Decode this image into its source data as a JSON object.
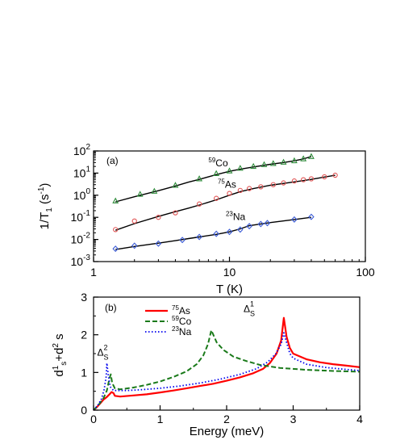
{
  "chart_data": [
    {
      "type": "scatter",
      "panel_label": "(a)",
      "xlabel": "T (K)",
      "ylabel": "1/T1 (s-1)",
      "ylabel_parts": {
        "main": "1/T",
        "sub": "1",
        "mid": " (s",
        "sup": "-1",
        "end": ")"
      },
      "xscale": "log",
      "yscale": "log",
      "xlim": [
        1,
        100
      ],
      "ylim": [
        0.001,
        100
      ],
      "x_ticks": [
        {
          "v": 1,
          "label": "1"
        },
        {
          "v": 10,
          "label": "10"
        },
        {
          "v": 100,
          "label": "100"
        }
      ],
      "y_ticks": [
        {
          "v": 0.001,
          "base": "10",
          "exp": "-3"
        },
        {
          "v": 0.01,
          "base": "10",
          "exp": "-2"
        },
        {
          "v": 0.1,
          "base": "10",
          "exp": "-1"
        },
        {
          "v": 1,
          "base": "10",
          "exp": "0"
        },
        {
          "v": 10,
          "base": "10",
          "exp": "1"
        },
        {
          "v": 100,
          "base": "10",
          "exp": "2"
        }
      ],
      "series": [
        {
          "name": "59Co",
          "label_sup": "59",
          "label_main": "Co",
          "label_at": [
            7.0,
            20
          ],
          "marker": "triangle",
          "color": "#2e8b3a",
          "points": [
            [
              1.45,
              0.55
            ],
            [
              2.2,
              1.1
            ],
            [
              2.8,
              1.5
            ],
            [
              4.0,
              2.8
            ],
            [
              6.0,
              5.5
            ],
            [
              8.0,
              9.5
            ],
            [
              10.0,
              12.5
            ],
            [
              12.0,
              16.5
            ],
            [
              15.0,
              20
            ],
            [
              18.0,
              24
            ],
            [
              21.0,
              27
            ],
            [
              25.0,
              31
            ],
            [
              30.0,
              36
            ],
            [
              35.0,
              44
            ],
            [
              40.0,
              56
            ]
          ],
          "fit": [
            [
              1.45,
              0.5
            ],
            [
              2.0,
              0.85
            ],
            [
              3.0,
              1.6
            ],
            [
              4.0,
              2.6
            ],
            [
              5.0,
              3.9
            ],
            [
              6.0,
              5.2
            ],
            [
              8.0,
              8.5
            ],
            [
              10.0,
              12
            ],
            [
              12.0,
              15
            ],
            [
              15.0,
              19
            ],
            [
              20.0,
              25
            ],
            [
              25.0,
              30
            ],
            [
              30.0,
              36
            ],
            [
              35.0,
              44
            ],
            [
              40.0,
              56
            ]
          ]
        },
        {
          "name": "75As",
          "label_sup": "75",
          "label_main": "As",
          "label_at": [
            8.2,
            2.2
          ],
          "marker": "circle",
          "color": "#e05252",
          "points": [
            [
              1.45,
              0.028
            ],
            [
              2.0,
              0.068
            ],
            [
              3.0,
              0.1
            ],
            [
              4.0,
              0.16
            ],
            [
              6.0,
              0.4
            ],
            [
              8.0,
              0.72
            ],
            [
              10.0,
              1.2
            ],
            [
              12.0,
              1.65
            ],
            [
              14.0,
              2.0
            ],
            [
              17.0,
              2.4
            ],
            [
              21.0,
              3.0
            ],
            [
              25.0,
              3.6
            ],
            [
              30.0,
              4.4
            ],
            [
              35.0,
              5.0
            ],
            [
              40.0,
              5.5
            ],
            [
              50.0,
              6.8
            ],
            [
              60.0,
              8.0
            ]
          ],
          "fit": [
            [
              1.45,
              0.026
            ],
            [
              2.0,
              0.052
            ],
            [
              3.0,
              0.11
            ],
            [
              4.0,
              0.18
            ],
            [
              5.0,
              0.26
            ],
            [
              6.0,
              0.36
            ],
            [
              8.0,
              0.62
            ],
            [
              10.0,
              1.0
            ],
            [
              12.0,
              1.45
            ],
            [
              15.0,
              2.0
            ],
            [
              20.0,
              2.8
            ],
            [
              30.0,
              4.0
            ],
            [
              40.0,
              5.2
            ],
            [
              50.0,
              6.6
            ],
            [
              60.0,
              8.0
            ]
          ]
        },
        {
          "name": "23Na",
          "label_sup": "23",
          "label_main": "Na",
          "label_at": [
            9.4,
            0.075
          ],
          "marker": "diamond",
          "color": "#3b5bd6",
          "points": [
            [
              1.45,
              0.0038
            ],
            [
              2.0,
              0.0052
            ],
            [
              3.0,
              0.0065
            ],
            [
              4.5,
              0.0095
            ],
            [
              6.0,
              0.013
            ],
            [
              8.0,
              0.018
            ],
            [
              10.0,
              0.022
            ],
            [
              12.0,
              0.028
            ],
            [
              14.0,
              0.04
            ],
            [
              17.0,
              0.05
            ],
            [
              19.0,
              0.055
            ],
            [
              30.0,
              0.08
            ],
            [
              40.0,
              0.105
            ]
          ],
          "fit": [
            [
              1.45,
              0.0035
            ],
            [
              2.0,
              0.0048
            ],
            [
              3.0,
              0.0068
            ],
            [
              4.0,
              0.0088
            ],
            [
              5.0,
              0.011
            ],
            [
              6.0,
              0.013
            ],
            [
              8.0,
              0.017
            ],
            [
              10.0,
              0.022
            ],
            [
              12.0,
              0.03
            ],
            [
              14.0,
              0.042
            ],
            [
              17.0,
              0.05
            ],
            [
              20.0,
              0.058
            ],
            [
              30.0,
              0.08
            ],
            [
              40.0,
              0.1
            ]
          ]
        }
      ]
    },
    {
      "type": "line",
      "panel_label": "(b)",
      "xlabel": "Energy  (meV)",
      "ylabel_parts": {
        "a": "d",
        "a_sup": "1",
        "a_sub": "s",
        "plus": "+d",
        "b_sup": "2",
        "b_end": " s"
      },
      "xlim": [
        0,
        4
      ],
      "ylim": [
        0,
        3
      ],
      "x_ticks": [
        {
          "v": 0,
          "label": "0"
        },
        {
          "v": 1,
          "label": "1"
        },
        {
          "v": 2,
          "label": "2"
        },
        {
          "v": 3,
          "label": "3"
        },
        {
          "v": 4,
          "label": "4"
        }
      ],
      "y_ticks": [
        {
          "v": 0,
          "label": "0"
        },
        {
          "v": 1,
          "label": "1"
        },
        {
          "v": 2,
          "label": "2"
        },
        {
          "v": 3,
          "label": "3"
        }
      ],
      "annotations": [
        {
          "main": "Δ",
          "sub": "S",
          "sup": "2",
          "at": [
            0.2,
            1.45
          ]
        },
        {
          "main": "Δ",
          "sub": "S",
          "sup": "1",
          "at": [
            2.4,
            2.6
          ]
        }
      ],
      "legend": "top-left",
      "series": [
        {
          "name": "75As",
          "sup": "75",
          "main": "As",
          "color": "#ff0000",
          "dash": "solid",
          "points": [
            [
              0,
              0
            ],
            [
              0.05,
              0.08
            ],
            [
              0.1,
              0.18
            ],
            [
              0.15,
              0.28
            ],
            [
              0.2,
              0.35
            ],
            [
              0.24,
              0.42
            ],
            [
              0.27,
              0.48
            ],
            [
              0.3,
              0.45
            ],
            [
              0.32,
              0.38
            ],
            [
              0.4,
              0.36
            ],
            [
              0.6,
              0.39
            ],
            [
              0.8,
              0.42
            ],
            [
              1.0,
              0.47
            ],
            [
              1.2,
              0.52
            ],
            [
              1.4,
              0.58
            ],
            [
              1.6,
              0.64
            ],
            [
              1.8,
              0.7
            ],
            [
              2.0,
              0.78
            ],
            [
              2.2,
              0.87
            ],
            [
              2.4,
              0.98
            ],
            [
              2.55,
              1.1
            ],
            [
              2.65,
              1.25
            ],
            [
              2.75,
              1.5
            ],
            [
              2.82,
              1.85
            ],
            [
              2.86,
              2.45
            ],
            [
              2.9,
              1.95
            ],
            [
              2.95,
              1.65
            ],
            [
              3.0,
              1.5
            ],
            [
              3.2,
              1.35
            ],
            [
              3.4,
              1.27
            ],
            [
              3.6,
              1.22
            ],
            [
              3.8,
              1.18
            ],
            [
              4.0,
              1.14
            ]
          ]
        },
        {
          "name": "59Co",
          "sup": "59",
          "main": "Co",
          "color": "#1a7a1a",
          "dash": "dashed",
          "points": [
            [
              0,
              0
            ],
            [
              0.08,
              0.15
            ],
            [
              0.15,
              0.32
            ],
            [
              0.2,
              0.52
            ],
            [
              0.24,
              0.85
            ],
            [
              0.26,
              0.95
            ],
            [
              0.28,
              0.72
            ],
            [
              0.32,
              0.58
            ],
            [
              0.4,
              0.55
            ],
            [
              0.6,
              0.6
            ],
            [
              0.8,
              0.67
            ],
            [
              1.0,
              0.76
            ],
            [
              1.2,
              0.88
            ],
            [
              1.4,
              1.03
            ],
            [
              1.55,
              1.22
            ],
            [
              1.65,
              1.45
            ],
            [
              1.72,
              1.75
            ],
            [
              1.77,
              2.12
            ],
            [
              1.8,
              2.0
            ],
            [
              1.85,
              1.8
            ],
            [
              1.95,
              1.6
            ],
            [
              2.1,
              1.42
            ],
            [
              2.3,
              1.3
            ],
            [
              2.5,
              1.2
            ],
            [
              2.8,
              1.12
            ],
            [
              3.2,
              1.07
            ],
            [
              3.6,
              1.04
            ],
            [
              4.0,
              1.02
            ]
          ]
        },
        {
          "name": "23Na",
          "sup": "23",
          "main": "Na",
          "color": "#0000ee",
          "dash": "dotted",
          "points": [
            [
              0,
              0
            ],
            [
              0.06,
              0.12
            ],
            [
              0.12,
              0.3
            ],
            [
              0.16,
              0.55
            ],
            [
              0.19,
              0.9
            ],
            [
              0.2,
              1.25
            ],
            [
              0.22,
              0.95
            ],
            [
              0.25,
              0.62
            ],
            [
              0.3,
              0.52
            ],
            [
              0.5,
              0.52
            ],
            [
              0.7,
              0.54
            ],
            [
              1.0,
              0.58
            ],
            [
              1.3,
              0.64
            ],
            [
              1.6,
              0.72
            ],
            [
              1.9,
              0.82
            ],
            [
              2.2,
              0.95
            ],
            [
              2.45,
              1.1
            ],
            [
              2.62,
              1.28
            ],
            [
              2.74,
              1.5
            ],
            [
              2.82,
              1.75
            ],
            [
              2.86,
              2.05
            ],
            [
              2.9,
              1.8
            ],
            [
              2.95,
              1.5
            ],
            [
              3.0,
              1.38
            ],
            [
              3.2,
              1.22
            ],
            [
              3.5,
              1.13
            ],
            [
              3.8,
              1.08
            ],
            [
              4.0,
              1.05
            ]
          ]
        }
      ]
    }
  ]
}
